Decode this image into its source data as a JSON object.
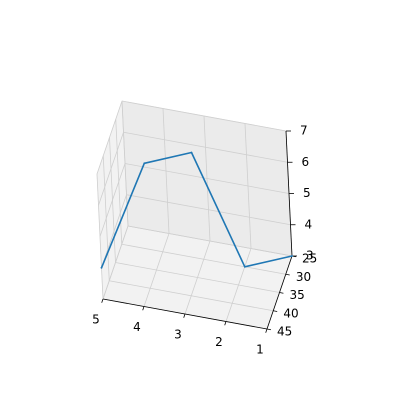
{
  "chart_data": {
    "type": "line",
    "projection": "3d",
    "title": "",
    "xlabel": "",
    "ylabel": "",
    "zlabel": "",
    "grid": true,
    "xlim": [
      1,
      5
    ],
    "ylim": [
      25,
      45
    ],
    "zlim": [
      3,
      7
    ],
    "x_ticks": [
      "5",
      "4",
      "3",
      "2",
      "1"
    ],
    "y_ticks": [
      "25",
      "30",
      "35",
      "40",
      "45"
    ],
    "z_ticks": [
      "3",
      "4",
      "5",
      "6",
      "7"
    ],
    "series": [
      {
        "color": "#1f77b4",
        "x": [
          5,
          4,
          3,
          2,
          1
        ],
        "y": [
          45,
          40,
          35,
          30,
          25
        ],
        "z": [
          4,
          7,
          7,
          3,
          3
        ]
      }
    ]
  }
}
